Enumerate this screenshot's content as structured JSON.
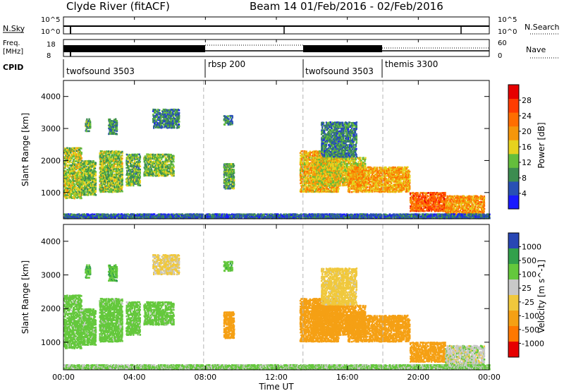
{
  "header": {
    "station": "Clyde River (fitACF)",
    "beam_and_dates": "Beam 14  01/Feb/2016 - 02/Feb/2016"
  },
  "top_panels": {
    "nsky_label": "N.Sky",
    "nsky_tick_top": "10^5",
    "nsky_tick_bottom": "10^0",
    "nsearch_label": "N.Search",
    "nsearch_tick_top": "10^5",
    "nsearch_tick_bottom": "10^0",
    "freq_label_line1": "Freq.",
    "freq_label_line2": "[MHz]",
    "freq_tick_top": "18",
    "freq_tick_bottom": "8",
    "nave_label": "Nave",
    "nave_tick_top": "60",
    "nave_tick_bottom": "0",
    "cpid_label": "CPID",
    "cpid_segments": [
      {
        "label": "twofsound 3503",
        "start_h": 0.0,
        "end_h": 7.9
      },
      {
        "label": "rbsp 200",
        "start_h": 7.9,
        "end_h": 13.5
      },
      {
        "label": "twofsound 3503",
        "start_h": 13.5,
        "end_h": 18.0
      },
      {
        "label": "themis 3300",
        "start_h": 18.0,
        "end_h": 24.0
      }
    ]
  },
  "time_axis": {
    "label": "Time UT",
    "ticks": [
      "00:00",
      "04:00",
      "08:00",
      "12:00",
      "16:00",
      "20:00",
      "00:00"
    ]
  },
  "range_axis": {
    "label": "Slant Range [km]",
    "ticks": [
      "1000",
      "2000",
      "3000",
      "4000"
    ]
  },
  "power_colorbar": {
    "label": "Power [dB]",
    "ticks": [
      "4",
      "8",
      "12",
      "16",
      "20",
      "24",
      "28"
    ],
    "colors": [
      "#1a1aff",
      "#2850b4",
      "#3c8c50",
      "#64be3c",
      "#e6d21e",
      "#f5960a",
      "#ff6e00",
      "#ff3c00",
      "#e60000"
    ]
  },
  "velocity_colorbar": {
    "label": "Velocity [m s^-1]",
    "ticks": [
      "1000",
      "500",
      "100",
      "25",
      "-25",
      "-100",
      "-500",
      "-1000"
    ],
    "colors": [
      "#2846b4",
      "#32a04b",
      "#64c83c",
      "#c8c8c8",
      "#f0c83c",
      "#f5a014",
      "#ff7800",
      "#e60000"
    ]
  },
  "chart_data": {
    "type": "heatmap",
    "xlabel": "Time UT",
    "ylabel": "Slant Range [km]",
    "xlim": [
      0,
      24
    ],
    "ylim": [
      180,
      4500
    ],
    "panels": [
      "Power [dB]",
      "Velocity [m s^-1]"
    ],
    "scatter_regions": [
      {
        "t0": 0.0,
        "t1": 1.0,
        "r0": 800,
        "r1": 2400,
        "power": 14,
        "velocity": 60
      },
      {
        "t0": 1.2,
        "t1": 1.5,
        "r0": 2900,
        "r1": 3300,
        "power": 10,
        "velocity": 80
      },
      {
        "t0": 1.0,
        "t1": 1.8,
        "r0": 900,
        "r1": 2000,
        "power": 12,
        "velocity": 60
      },
      {
        "t0": 2.0,
        "t1": 3.3,
        "r0": 1000,
        "r1": 2300,
        "power": 13,
        "velocity": 60
      },
      {
        "t0": 2.5,
        "t1": 3.0,
        "r0": 2800,
        "r1": 3300,
        "power": 9,
        "velocity": 80
      },
      {
        "t0": 3.5,
        "t1": 4.3,
        "r0": 1200,
        "r1": 2200,
        "power": 11,
        "velocity": 60
      },
      {
        "t0": 4.5,
        "t1": 6.2,
        "r0": 1500,
        "r1": 2200,
        "power": 12,
        "velocity": 60
      },
      {
        "t0": 5.0,
        "t1": 6.5,
        "r0": 3000,
        "r1": 3600,
        "power": 8,
        "velocity": -40
      },
      {
        "t0": 9.0,
        "t1": 9.6,
        "r0": 1100,
        "r1": 1900,
        "power": 11,
        "velocity": -200
      },
      {
        "t0": 9.0,
        "t1": 9.5,
        "r0": 3100,
        "r1": 3400,
        "power": 9,
        "velocity": 70
      },
      {
        "t0": 13.3,
        "t1": 15.5,
        "r0": 1000,
        "r1": 2300,
        "power": 18,
        "velocity": -200
      },
      {
        "t0": 14.0,
        "t1": 17.0,
        "r0": 1200,
        "r1": 2100,
        "power": 16,
        "velocity": -180
      },
      {
        "t0": 14.5,
        "t1": 16.5,
        "r0": 2100,
        "r1": 3200,
        "power": 8,
        "velocity": -60
      },
      {
        "t0": 16.0,
        "t1": 19.5,
        "r0": 1000,
        "r1": 1800,
        "power": 19,
        "velocity": -150
      },
      {
        "t0": 19.5,
        "t1": 21.5,
        "r0": 400,
        "r1": 1000,
        "power": 24,
        "velocity": -200
      },
      {
        "t0": 21.5,
        "t1": 23.7,
        "r0": 200,
        "r1": 900,
        "power": 20,
        "velocity": 0
      },
      {
        "t0": 0.0,
        "t1": 24.0,
        "r0": 180,
        "r1": 320,
        "power": 6,
        "velocity": 40
      }
    ],
    "transitions_h": [
      7.9,
      13.5,
      18.0
    ]
  }
}
